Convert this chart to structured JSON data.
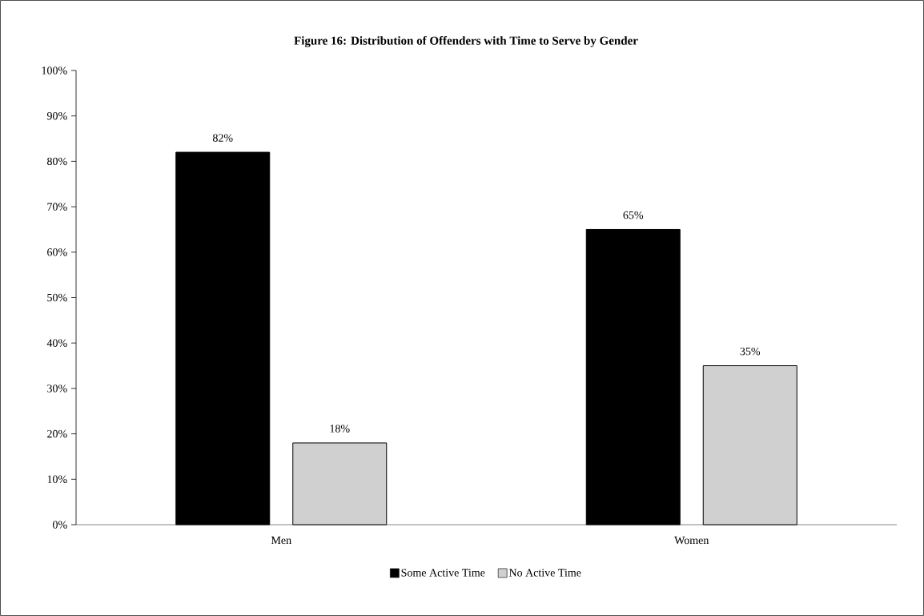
{
  "chart_data": {
    "type": "bar",
    "title": "Figure 16: Distribution of Offenders with Time to Serve by Gender",
    "categories": [
      "Men",
      "Women"
    ],
    "series": [
      {
        "name": "Some Active Time",
        "color": "#000000",
        "values": [
          82,
          65
        ],
        "value_labels": [
          "82%",
          "65%"
        ]
      },
      {
        "name": "No Active Time",
        "color": "#d0d0d0",
        "values": [
          18,
          35
        ],
        "value_labels": [
          "18%",
          "35%"
        ]
      }
    ],
    "ylim": [
      0,
      100
    ],
    "yticks": [
      {
        "value": 0,
        "label": "0%"
      },
      {
        "value": 10,
        "label": "10%"
      },
      {
        "value": 20,
        "label": "20%"
      },
      {
        "value": 30,
        "label": "30%"
      },
      {
        "value": 40,
        "label": "40%"
      },
      {
        "value": 50,
        "label": "50%"
      },
      {
        "value": 60,
        "label": "60%"
      },
      {
        "value": 70,
        "label": "70%"
      },
      {
        "value": 80,
        "label": "80%"
      },
      {
        "value": 90,
        "label": "90%"
      },
      {
        "value": 100,
        "label": "100%"
      }
    ],
    "legend": "bottom",
    "grid": false
  }
}
